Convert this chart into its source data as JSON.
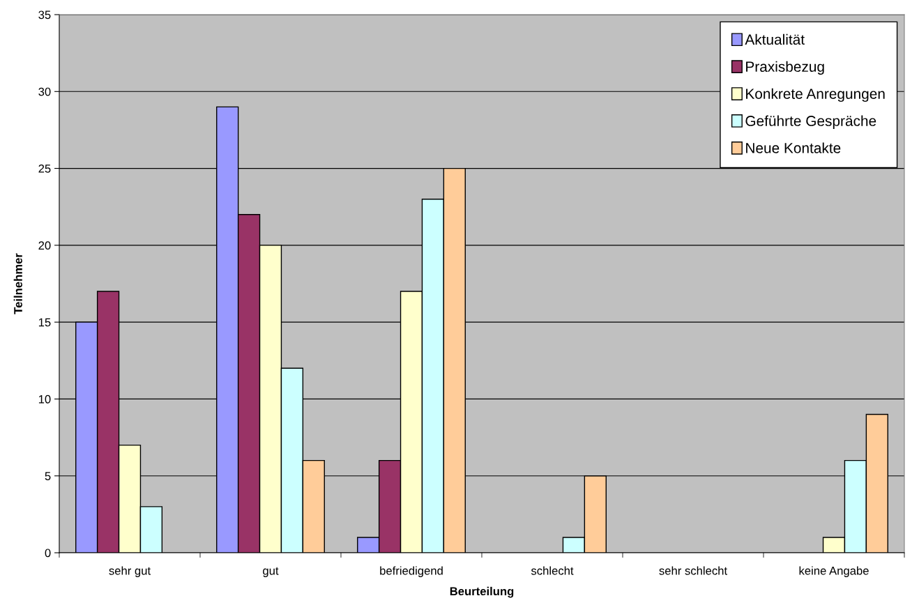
{
  "chart_data": {
    "type": "bar",
    "xlabel": "Beurteilung",
    "ylabel": "Teilnehmer",
    "categories": [
      "sehr gut",
      "gut",
      "befriedigend",
      "schlecht",
      "sehr schlecht",
      "keine Angabe"
    ],
    "series": [
      {
        "name": "Aktualität",
        "color": "#9999ff",
        "values": [
          15,
          29,
          1,
          0,
          0,
          0
        ]
      },
      {
        "name": "Praxisbezug",
        "color": "#993366",
        "values": [
          17,
          22,
          6,
          0,
          0,
          0
        ]
      },
      {
        "name": "Konkrete Anregungen",
        "color": "#ffffcc",
        "values": [
          7,
          20,
          17,
          0,
          0,
          1
        ]
      },
      {
        "name": "Geführte Gespräche",
        "color": "#ccffff",
        "values": [
          3,
          12,
          23,
          1,
          0,
          6
        ]
      },
      {
        "name": "Neue Kontakte",
        "color": "#ffcc99",
        "values": [
          0,
          6,
          25,
          5,
          0,
          9
        ]
      }
    ],
    "ylim": [
      0,
      35
    ],
    "yticks": [
      0,
      5,
      10,
      15,
      20,
      25,
      30,
      35
    ],
    "grid": "y",
    "legend": "top right"
  }
}
